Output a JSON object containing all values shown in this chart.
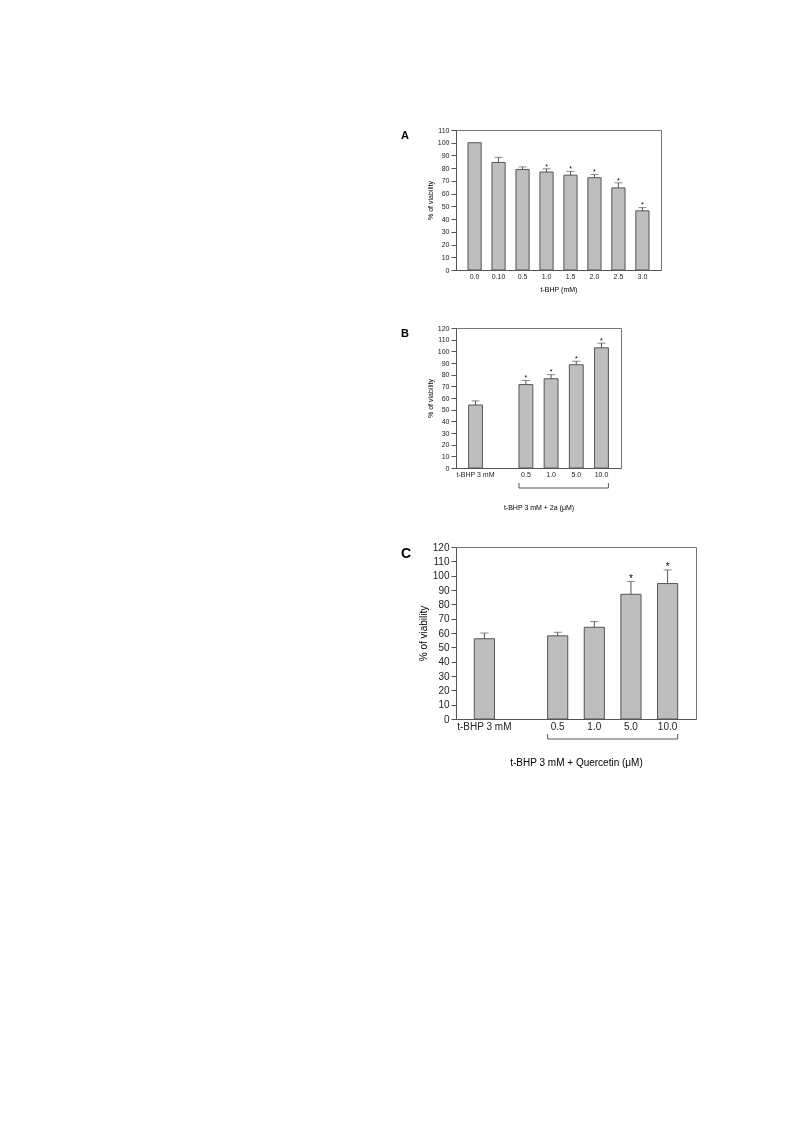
{
  "chart_data": [
    {
      "type": "bar",
      "title": "A",
      "xlabel": "t-BHP (mM)",
      "ylabel": "% of viability",
      "categories": [
        "0.0",
        "0.10",
        "0.5",
        "1.0",
        "1.5",
        "2.0",
        "2.5",
        "3.0"
      ],
      "values": [
        100,
        84.5,
        79,
        77,
        74.5,
        72.5,
        64.5,
        46.5
      ],
      "color": "#bebebe",
      "errors": [
        null,
        [
          84.5,
          88.5
        ],
        [
          79,
          81
        ],
        [
          77,
          79.5
        ],
        [
          74.5,
          77.5
        ],
        [
          72.5,
          75
        ],
        [
          64.5,
          68.5
        ],
        [
          46.5,
          49
        ]
      ],
      "ylim": [
        0,
        110
      ],
      "yticks": [
        0,
        10,
        20,
        30,
        40,
        50,
        60,
        70,
        80,
        90,
        100,
        110
      ],
      "grid": false,
      "annotations": [
        {
          "text": "*",
          "x": "1.0",
          "y": 81
        },
        {
          "text": "*",
          "x": "1.5",
          "y": 79
        },
        {
          "text": "*",
          "x": "2.0",
          "y": 77
        },
        {
          "text": "*",
          "x": "2.5",
          "y": 70
        },
        {
          "text": "*",
          "x": "3.0",
          "y": 51
        }
      ]
    },
    {
      "type": "bar",
      "title": "B",
      "xlabel": "t-BHP 3 mM + 2a (μM)",
      "ylabel": "% of viability",
      "categories": [
        "t-BHP 3 mM",
        null,
        "0.5",
        "1.0",
        "5.0",
        "10.0"
      ],
      "values": [
        54,
        null,
        71.5,
        76.5,
        88.5,
        103
      ],
      "color": "#bebebe",
      "errors": [
        [
          54,
          57.5
        ],
        null,
        [
          71.5,
          75
        ],
        [
          76.5,
          80
        ],
        [
          88.5,
          91.5
        ],
        [
          103,
          107
        ]
      ],
      "ylim": [
        0,
        120
      ],
      "yticks": [
        0,
        10,
        20,
        30,
        40,
        50,
        60,
        70,
        80,
        90,
        100,
        110,
        120
      ],
      "grid": false,
      "annotations": [
        {
          "text": "*",
          "x": "0.5",
          "y": 77
        },
        {
          "text": "*",
          "x": "1.0",
          "y": 82
        },
        {
          "text": "*",
          "x": "5.0",
          "y": 93.5
        },
        {
          "text": "*",
          "x": "10.0",
          "y": 109
        }
      ]
    },
    {
      "type": "bar",
      "title": "C",
      "xlabel": "t-BHP 3 mM + Quercetin (μM)",
      "ylabel": "% of viability",
      "categories": [
        "t-BHP 3 mM",
        null,
        "0.5",
        "1.0",
        "5.0",
        "10.0"
      ],
      "values": [
        56,
        null,
        58,
        64,
        87,
        94.5
      ],
      "color": "#bebebe",
      "errors": [
        [
          56,
          60
        ],
        null,
        [
          58,
          60.5
        ],
        [
          64,
          68
        ],
        [
          87,
          96
        ],
        [
          94.5,
          104
        ]
      ],
      "ylim": [
        0,
        120
      ],
      "yticks": [
        0,
        10,
        20,
        30,
        40,
        50,
        60,
        70,
        80,
        90,
        100,
        110,
        120
      ],
      "grid": false,
      "annotations": [
        {
          "text": "*",
          "x": "5.0",
          "y": 98
        },
        {
          "text": "*",
          "x": "10.0",
          "y": 106
        }
      ]
    }
  ]
}
